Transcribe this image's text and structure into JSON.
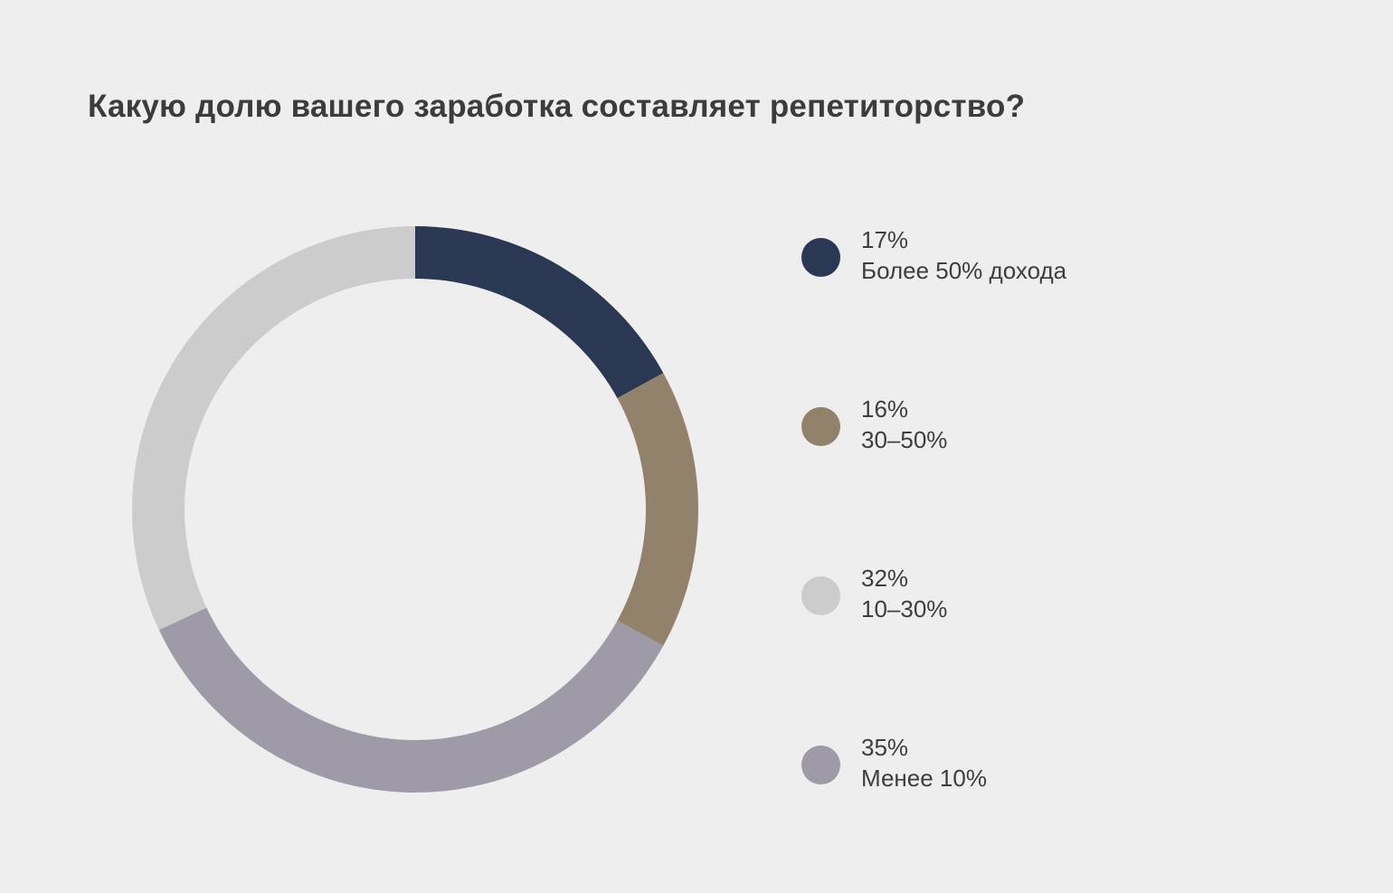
{
  "chart_data": {
    "type": "pie",
    "variant": "donut",
    "title": "Какую долю вашего заработка составляет репетиторство?",
    "series": [
      {
        "name": "Более 50% дохода",
        "label": "17%",
        "value": 17,
        "color": "#2a3854"
      },
      {
        "name": "30–50%",
        "label": "16%",
        "value": 16,
        "color": "#93826b"
      },
      {
        "name": "10–30%",
        "label": "32%",
        "value": 32,
        "color": "#cccccc"
      },
      {
        "name": "Менее 10%",
        "label": "35%",
        "value": 35,
        "color": "#9e9aa7"
      }
    ],
    "slice_order_on_chart": [
      "Более 50% дохода",
      "30–50%",
      "Менее 10%",
      "10–30%"
    ],
    "legend_position": "right"
  }
}
